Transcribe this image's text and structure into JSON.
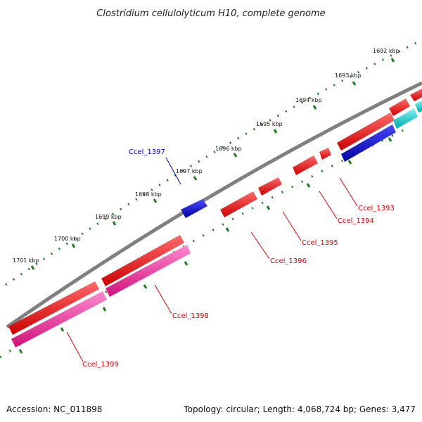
{
  "title": "Clostridium cellulolyticum H10, complete genome",
  "footer": {
    "accession": "Accession: NC_011898",
    "summary": "Topology: circular; Length: 4,068,724 bp; Genes: 3,477"
  },
  "kbp_labels": [
    "1692 kbp",
    "1693 kbp",
    "1694 kbp",
    "1695 kbp",
    "1696 kbp",
    "1697 kbp",
    "1698 kbp",
    "1699 kbp",
    "1700 kbp",
    "1701 kbp"
  ],
  "gene_labels": [
    "Ccel_1393",
    "Ccel_1394",
    "Ccel_1395",
    "Ccel_1396",
    "Ccel_1397",
    "Ccel_1398",
    "Ccel_1399"
  ],
  "colors": {
    "tick": "#1e7d1e",
    "backbone": "#808080",
    "gene_red": "#ff0000",
    "gene_blue": "#0000dd",
    "gene_magenta": "#ff1493",
    "gene_cyan": "#00cccc",
    "label_red": "#dd0000",
    "label_blue": "#0000cc"
  }
}
